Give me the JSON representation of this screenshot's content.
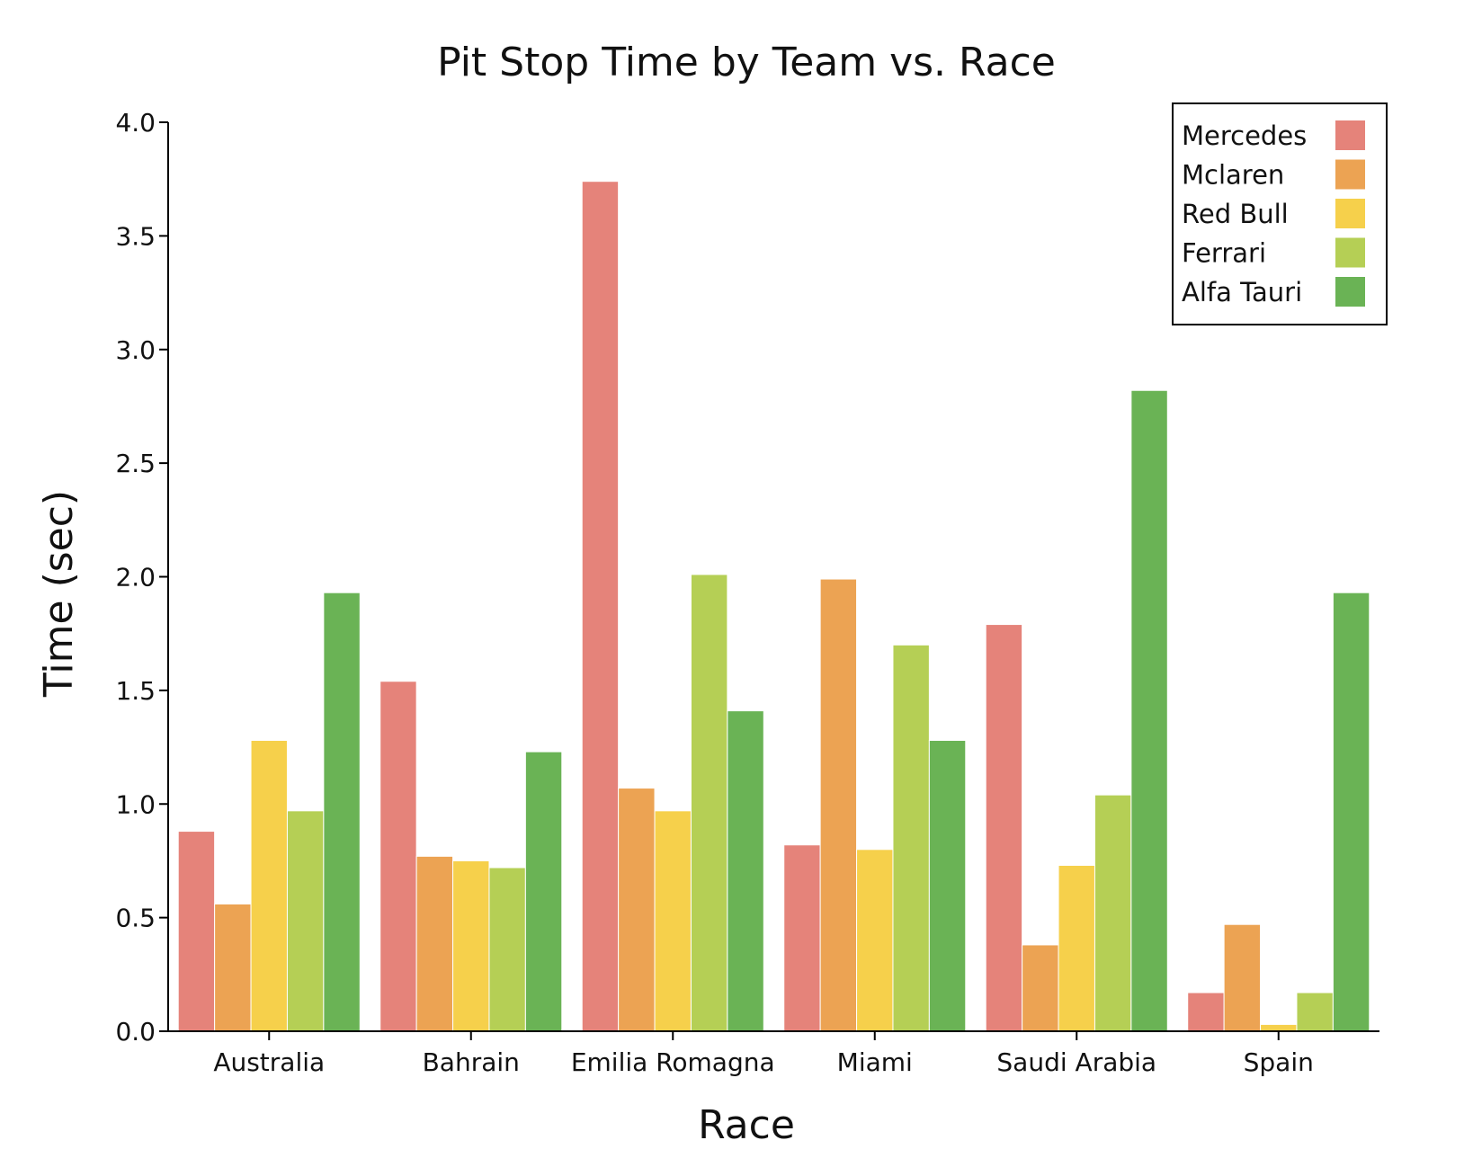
{
  "chart_data": {
    "type": "bar",
    "title": "Pit Stop Time by Team vs. Race",
    "xlabel": "Race",
    "ylabel": "Time (sec)",
    "ylim": [
      0,
      4.0
    ],
    "yticks": [
      "0.0",
      "0.5",
      "1.0",
      "1.5",
      "2.0",
      "2.5",
      "3.0",
      "3.5",
      "4.0"
    ],
    "grid": false,
    "legend_position": "top-right",
    "categories": [
      "Australia",
      "Bahrain",
      "Emilia Romagna",
      "Miami",
      "Saudi Arabia",
      "Spain"
    ],
    "series": [
      {
        "name": "Mercedes",
        "color": "#e5837a",
        "values": [
          0.88,
          1.54,
          3.74,
          0.82,
          1.79,
          0.17
        ]
      },
      {
        "name": "Mclaren",
        "color": "#eca353",
        "values": [
          0.56,
          0.77,
          1.07,
          1.99,
          0.38,
          0.47
        ]
      },
      {
        "name": "Red Bull",
        "color": "#f6d04b",
        "values": [
          1.28,
          0.75,
          0.97,
          0.8,
          0.73,
          0.03
        ]
      },
      {
        "name": "Ferrari",
        "color": "#b5cf55",
        "values": [
          0.97,
          0.72,
          2.01,
          1.7,
          1.04,
          0.17
        ]
      },
      {
        "name": "Alfa Tauri",
        "color": "#6ab355",
        "values": [
          1.93,
          1.23,
          1.41,
          1.28,
          2.82,
          1.93
        ]
      }
    ]
  }
}
